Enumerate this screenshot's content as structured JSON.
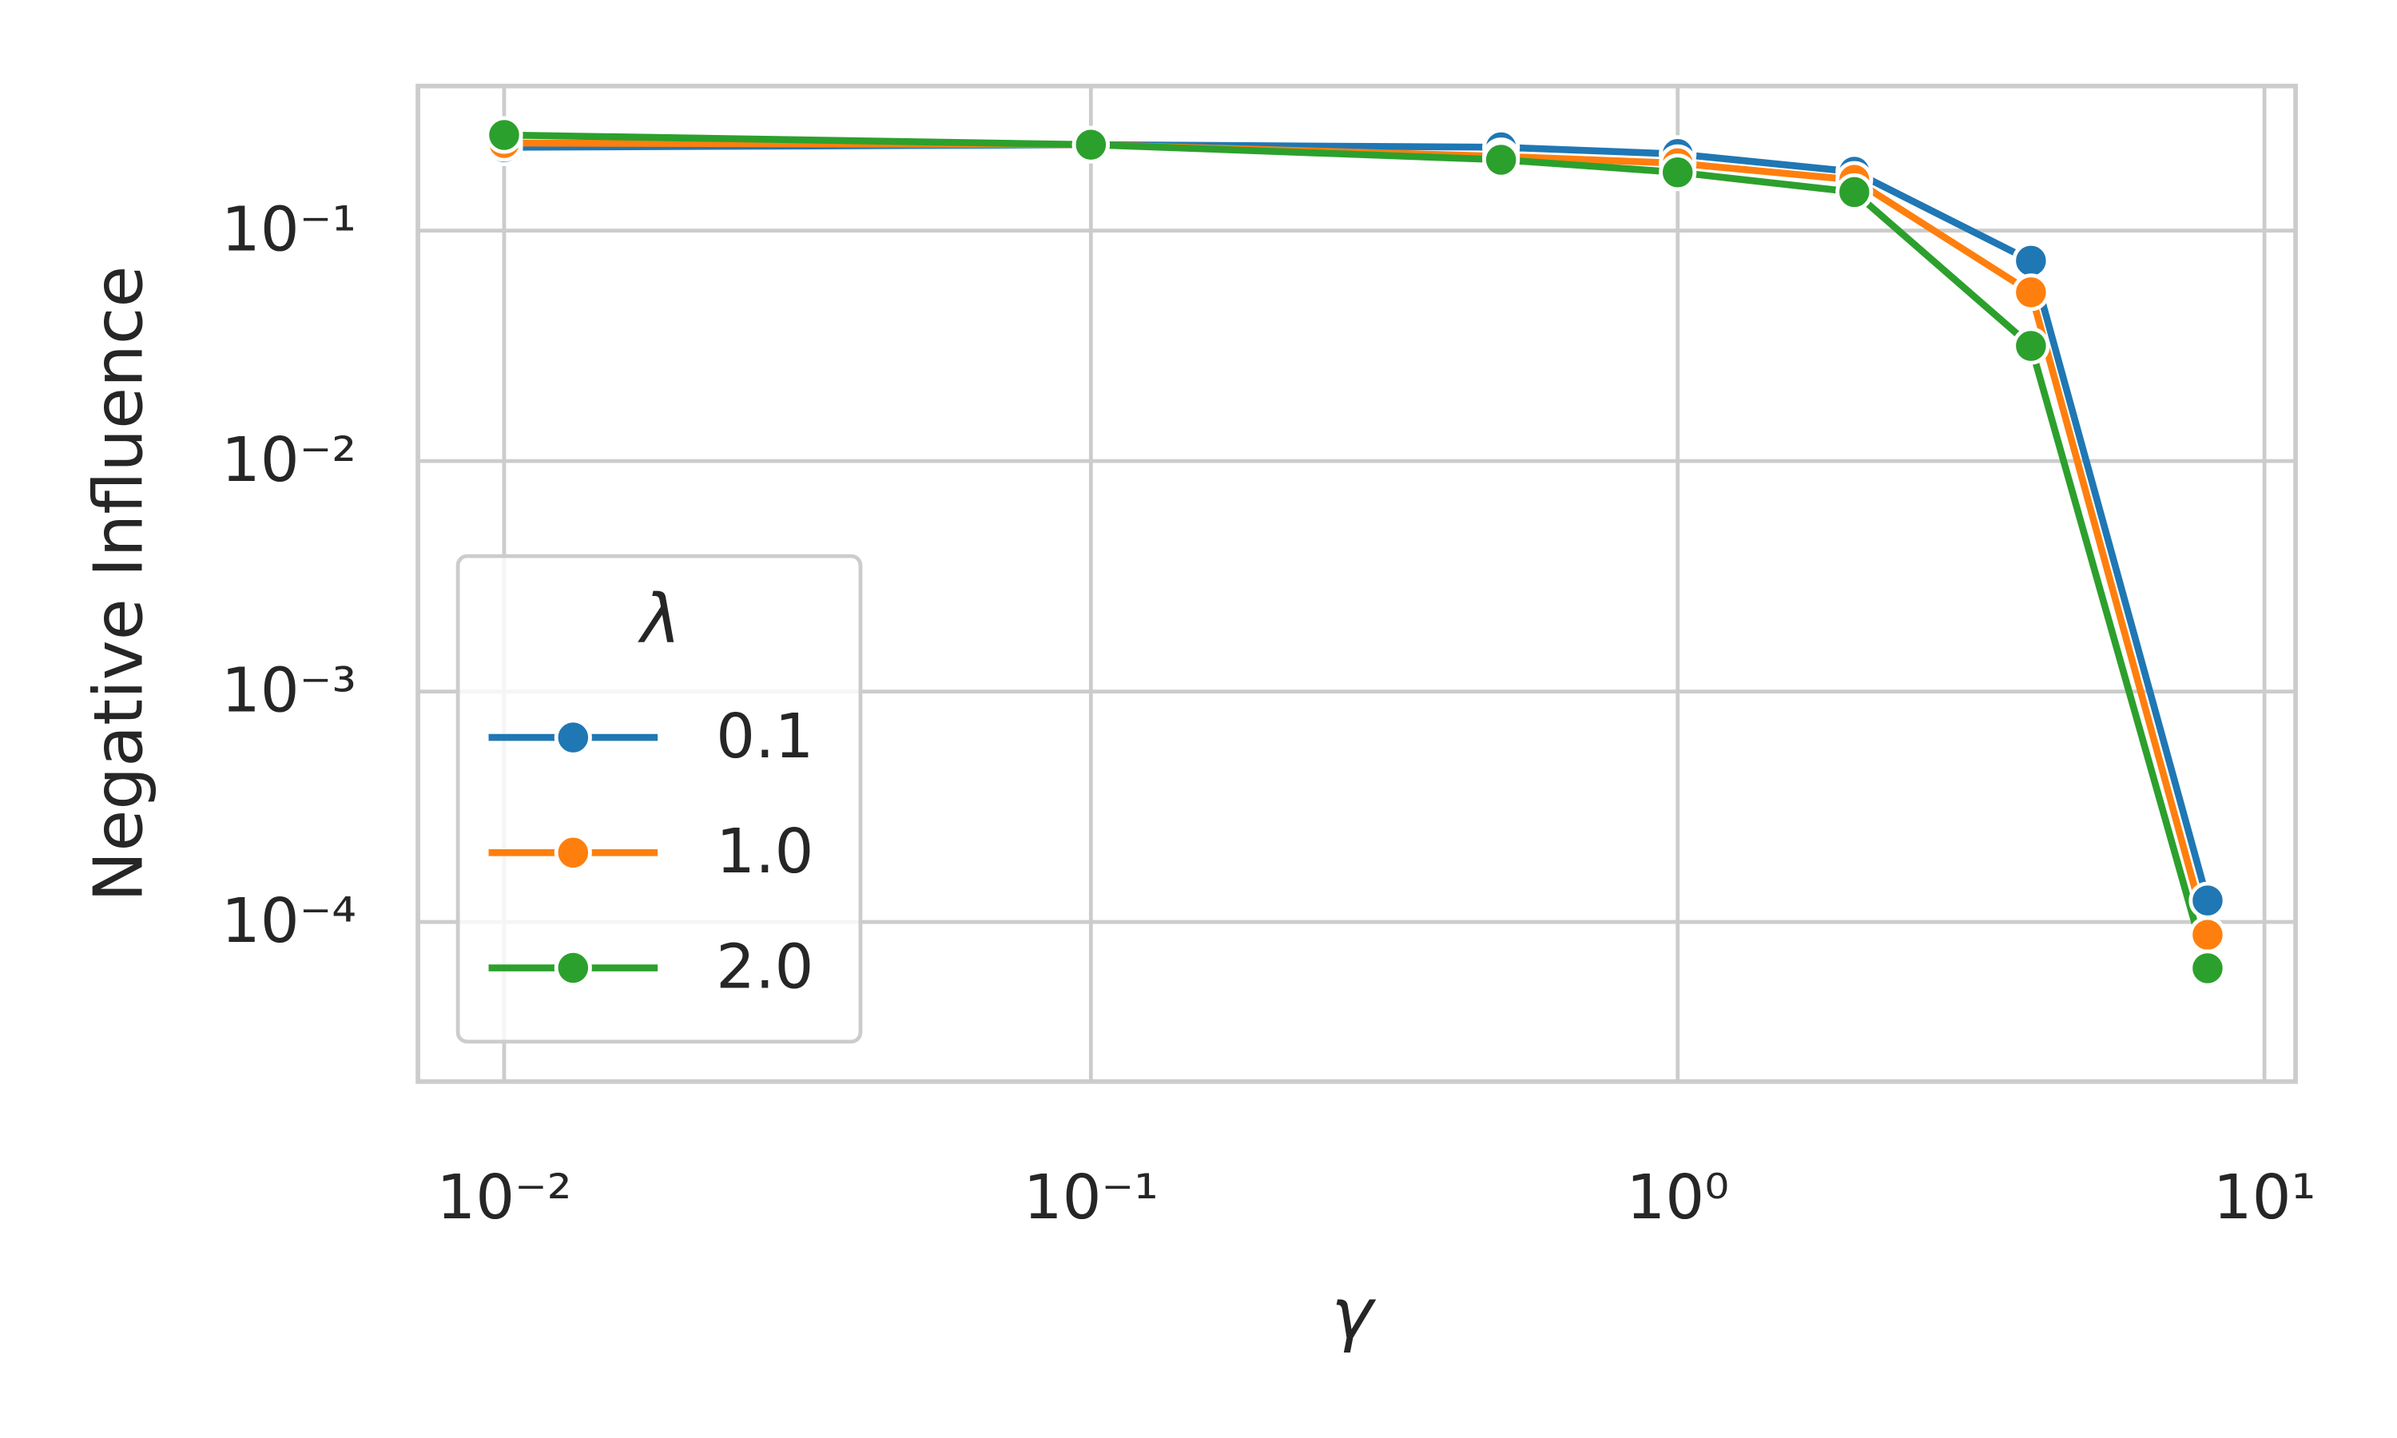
{
  "chart_data": {
    "type": "line",
    "x_label": "γ",
    "y_label": "Negative Influence",
    "x": [
      0.01,
      0.1,
      0.5,
      1,
      2,
      4,
      8
    ],
    "series": [
      {
        "name": "0.1",
        "color": "#1f77b4",
        "values": [
          0.23,
          0.236,
          0.23,
          0.215,
          0.18,
          0.074,
          0.000124
        ]
      },
      {
        "name": "1.0",
        "color": "#ff7f0e",
        "values": [
          0.24,
          0.236,
          0.21,
          0.196,
          0.166,
          0.054,
          8.8e-05
        ]
      },
      {
        "name": "2.0",
        "color": "#2ca02c",
        "values": [
          0.26,
          0.236,
          0.203,
          0.179,
          0.147,
          0.0316,
          6.3e-05
        ]
      }
    ],
    "legend_title": "λ",
    "legend_position": "lower left",
    "xscale": "log",
    "yscale": "log",
    "grid": true,
    "xlim": [
      0.00713,
      11.3
    ],
    "ylim": [
      2.03e-05,
      0.424
    ],
    "xticks": [
      {
        "value": 0.01,
        "label": "10⁻²"
      },
      {
        "value": 0.1,
        "label": "10⁻¹"
      },
      {
        "value": 1,
        "label": "10⁰"
      },
      {
        "value": 10,
        "label": "10¹"
      }
    ],
    "yticks": [
      {
        "value": 0.0001,
        "label": "10⁻⁴"
      },
      {
        "value": 0.001,
        "label": "10⁻³"
      },
      {
        "value": 0.01,
        "label": "10⁻²"
      },
      {
        "value": 0.1,
        "label": "10⁻¹"
      }
    ]
  }
}
